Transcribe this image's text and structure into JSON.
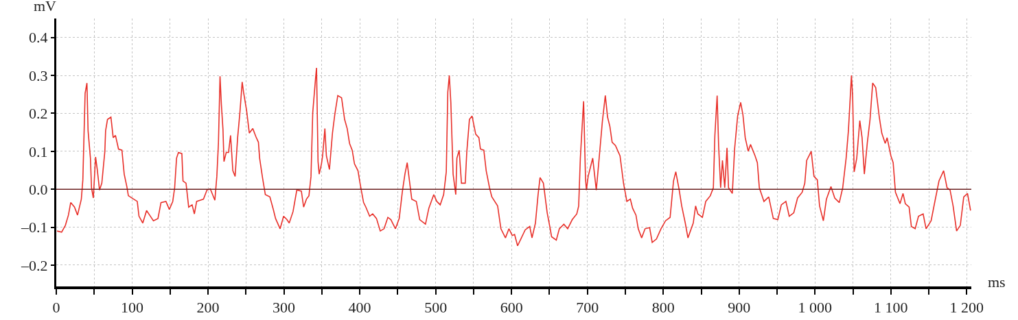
{
  "chart_data": {
    "type": "line",
    "xlabel": "ms",
    "ylabel": "mV",
    "xlim": [
      0,
      1206
    ],
    "ylim": [
      -0.256,
      0.45
    ],
    "xticks": [
      0,
      {
        "value": 50,
        "label": null
      },
      100,
      {
        "value": 150,
        "label": null
      },
      200,
      {
        "value": 250,
        "label": null
      },
      300,
      {
        "value": 350,
        "label": null
      },
      400,
      {
        "value": 450,
        "label": null
      },
      500,
      {
        "value": 550,
        "label": null
      },
      600,
      {
        "value": 650,
        "label": null
      },
      700,
      {
        "value": 750,
        "label": null
      },
      800,
      {
        "value": 850,
        "label": null
      },
      900,
      {
        "value": 950,
        "label": null
      },
      {
        "value": 1000,
        "label": "1 000"
      },
      {
        "value": 1050,
        "label": null
      },
      {
        "value": 1100,
        "label": "1 100"
      },
      {
        "value": 1150,
        "label": null
      },
      {
        "value": 1200,
        "label": "1 200"
      }
    ],
    "yticks": [
      {
        "value": -0.2,
        "label": "–0.2"
      },
      {
        "value": -0.1,
        "label": "–0.1"
      },
      {
        "value": 0,
        "label": "0.0"
      },
      0.1,
      0.2,
      0.3,
      0.4
    ],
    "grid": true,
    "line_style": "solid",
    "ref_lines": [
      {
        "axis": "y",
        "value": 0,
        "color": "#6b1f1f"
      }
    ],
    "series": [
      {
        "color": "#e8302a",
        "x": [
          1,
          7,
          12,
          16,
          19,
          24,
          28,
          33,
          35,
          38,
          40.4,
          41.9,
          45,
          46.4,
          48.8,
          51.8,
          54,
          57,
          60,
          64,
          65,
          67.5,
          72,
          75,
          78,
          82,
          86.5,
          89.5,
          93,
          95,
          102,
          106.7,
          109,
          114,
          119,
          123,
          128,
          134,
          138,
          144.5,
          149,
          153.5,
          156,
          158.5,
          161,
          165.5,
          167,
          171,
          174.5,
          179,
          182,
          185,
          189.6,
          194,
          198.6,
          203,
          209,
          211.6,
          213.7,
          215.8,
          217.6,
          219.7,
          221,
          224,
          227,
          229.7,
          232.7,
          235.7,
          239,
          242,
          245,
          246.8,
          250.8,
          254.4,
          259,
          263,
          266.4,
          268,
          272,
          275.5,
          281.5,
          286,
          289,
          295,
          299.6,
          304,
          307,
          312,
          317,
          323,
          326,
          329.7,
          333,
          335.7,
          338,
          341.7,
          343,
          345,
          346.5,
          349.5,
          351,
          354,
          356,
          360,
          364,
          367,
          371,
          376,
          380,
          383.4,
          386.5,
          390,
          393,
          397.6,
          400.6,
          405,
          408,
          413,
          417,
          422,
          427,
          432,
          437,
          441,
          447,
          452,
          456,
          459.5,
          462.5,
          465.5,
          468.5,
          474.5,
          479,
          486.6,
          491,
          497.5,
          501.5,
          506,
          510.5,
          514,
          516,
          518,
          520,
          523,
          526.5,
          528,
          531,
          534,
          539,
          541,
          544.5,
          548,
          552.8,
          557,
          559,
          563.5,
          566.6,
          571,
          574,
          581.7,
          586,
          592,
          596.6,
          601,
          604,
          608,
          613,
          618,
          624,
          627,
          631.5,
          635,
          637.6,
          642,
          647,
          651,
          652.8,
          659,
          663,
          669,
          674,
          680,
          686,
          688.5,
          690.7,
          693.6,
          695,
          697.5,
          698.7,
          701,
          707,
          711.7,
          714.7,
          717.6,
          719.7,
          723.6,
          726.6,
          729.6,
          732.6,
          737,
          743,
          747.6,
          752,
          756.6,
          759.6,
          764,
          767,
          771.5,
          776,
          782,
          785.4,
          791,
          797,
          803,
          809,
          813.5,
          816.5,
          821,
          824.3,
          829,
          832.5,
          839.5,
          842.6,
          845.6,
          851.6,
          856,
          862,
          866,
          868,
          871,
          873,
          875.6,
          878,
          881,
          884,
          886,
          891,
          894,
          898,
          902,
          905,
          908,
          912,
          915,
          921,
          924,
          926.6,
          932.7,
          939,
          945,
          951,
          955.6,
          961.6,
          966,
          972,
          977,
          983,
          986.5,
          989,
          995,
          998.6,
          1003,
          1006,
          1011,
          1015,
          1021,
          1026,
          1032,
          1036.5,
          1041,
          1044,
          1048,
          1049.6,
          1051.6,
          1055,
          1059,
          1062,
          1065,
          1069,
          1072.5,
          1076,
          1080,
          1084.7,
          1088,
          1092.5,
          1095,
          1100,
          1103,
          1106,
          1112,
          1116,
          1119,
          1124,
          1127,
          1132,
          1136.4,
          1142.5,
          1146.4,
          1153,
          1157.4,
          1163.4,
          1169.5,
          1174,
          1178,
          1182,
          1186.6,
          1191.5,
          1196,
          1201,
          1205
        ],
        "values": [
          -0.11,
          -0.113,
          -0.095,
          -0.068,
          -0.035,
          -0.047,
          -0.068,
          -0.026,
          0.025,
          0.253,
          0.28,
          0.154,
          0.082,
          0.004,
          -0.023,
          0.085,
          0.052,
          -0.002,
          0.016,
          0.1,
          0.154,
          0.184,
          0.19,
          0.136,
          0.142,
          0.106,
          0.103,
          0.04,
          0.007,
          -0.017,
          -0.026,
          -0.032,
          -0.071,
          -0.089,
          -0.056,
          -0.068,
          -0.083,
          -0.077,
          -0.035,
          -0.032,
          -0.053,
          -0.032,
          0.004,
          0.082,
          0.097,
          0.094,
          0.022,
          0.016,
          -0.047,
          -0.041,
          -0.065,
          -0.032,
          -0.029,
          -0.026,
          -0.002,
          0.001,
          -0.029,
          0.034,
          0.121,
          0.298,
          0.223,
          0.157,
          0.073,
          0.097,
          0.097,
          0.142,
          0.049,
          0.034,
          0.136,
          0.202,
          0.283,
          0.256,
          0.208,
          0.148,
          0.16,
          0.139,
          0.124,
          0.082,
          0.028,
          -0.014,
          -0.02,
          -0.053,
          -0.077,
          -0.104,
          -0.071,
          -0.08,
          -0.089,
          -0.059,
          -0.002,
          -0.005,
          -0.047,
          -0.026,
          -0.017,
          0.034,
          0.202,
          0.292,
          0.32,
          0.073,
          0.04,
          0.067,
          0.088,
          0.16,
          0.088,
          0.052,
          0.148,
          0.196,
          0.247,
          0.241,
          0.184,
          0.16,
          0.121,
          0.103,
          0.067,
          0.049,
          0.013,
          -0.035,
          -0.047,
          -0.071,
          -0.065,
          -0.077,
          -0.11,
          -0.104,
          -0.074,
          -0.08,
          -0.104,
          -0.077,
          -0.008,
          0.04,
          0.07,
          0.022,
          -0.026,
          -0.032,
          -0.08,
          -0.092,
          -0.05,
          -0.014,
          -0.032,
          -0.041,
          -0.014,
          0.046,
          0.256,
          0.3,
          0.229,
          0.04,
          -0.014,
          0.082,
          0.103,
          0.016,
          0.016,
          0.097,
          0.184,
          0.193,
          0.145,
          0.136,
          0.106,
          0.103,
          0.049,
          0.004,
          -0.02,
          -0.044,
          -0.104,
          -0.128,
          -0.104,
          -0.122,
          -0.119,
          -0.149,
          -0.128,
          -0.107,
          -0.098,
          -0.128,
          -0.089,
          -0.014,
          0.031,
          0.016,
          -0.062,
          -0.104,
          -0.125,
          -0.134,
          -0.104,
          -0.092,
          -0.104,
          -0.08,
          -0.065,
          -0.044,
          0.082,
          0.184,
          0.232,
          0.028,
          -0.002,
          0.034,
          0.082,
          -0.002,
          0.064,
          0.13,
          0.178,
          0.247,
          0.19,
          0.166,
          0.124,
          0.115,
          0.088,
          0.016,
          -0.032,
          -0.026,
          -0.05,
          -0.068,
          -0.104,
          -0.128,
          -0.104,
          -0.101,
          -0.14,
          -0.131,
          -0.104,
          -0.083,
          -0.074,
          0.022,
          0.046,
          -0.002,
          -0.044,
          -0.089,
          -0.128,
          -0.089,
          -0.044,
          -0.065,
          -0.074,
          -0.032,
          -0.017,
          0.004,
          0.142,
          0.247,
          0.112,
          0.004,
          0.076,
          0.004,
          0.109,
          0.004,
          -0.011,
          0.106,
          0.193,
          0.229,
          0.196,
          0.136,
          0.1,
          0.118,
          0.088,
          0.07,
          0.004,
          -0.032,
          -0.02,
          -0.077,
          -0.08,
          -0.041,
          -0.032,
          -0.071,
          -0.062,
          -0.023,
          -0.008,
          0.016,
          0.076,
          0.1,
          0.034,
          0.025,
          -0.044,
          -0.083,
          -0.026,
          0.007,
          -0.023,
          -0.035,
          0.004,
          0.082,
          0.154,
          0.3,
          0.244,
          0.046,
          0.082,
          0.181,
          0.136,
          0.04,
          0.124,
          0.184,
          0.28,
          0.268,
          0.19,
          0.148,
          0.121,
          0.136,
          0.088,
          0.07,
          -0.008,
          -0.038,
          -0.011,
          -0.038,
          -0.047,
          -0.098,
          -0.104,
          -0.071,
          -0.065,
          -0.104,
          -0.083,
          -0.038,
          0.022,
          0.049,
          0.004,
          -0.002,
          -0.044,
          -0.11,
          -0.095,
          -0.02,
          -0.011,
          -0.056
        ]
      }
    ]
  }
}
